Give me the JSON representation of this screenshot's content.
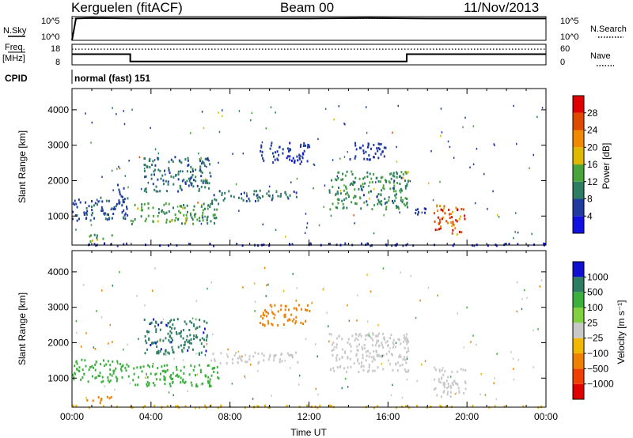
{
  "header": {
    "station": "Kerguelen (fitACF)",
    "beam": "Beam 00",
    "date": "11/Nov/2013"
  },
  "panel_labels": {
    "nsky": "N.Sky",
    "nsearch": "N.Search",
    "freq_line1": "Freq.",
    "freq_line2": "[MHz]",
    "nave": "Nave",
    "cpid": "CPID",
    "cpid_value": "normal (fast) 151"
  },
  "noise_ticks_left": [
    "10^5",
    "10^0"
  ],
  "noise_ticks_right": [
    "10^5",
    "10^0"
  ],
  "freq_ticks": [
    "18",
    "8"
  ],
  "nave_ticks": [
    "60",
    "0"
  ],
  "chart_data": [
    {
      "type": "line",
      "name_ref": "noise",
      "series": [
        {
          "name": "N.Sky",
          "x_hours": [
            0,
            0.2,
            1,
            3,
            6,
            9,
            12,
            15,
            18,
            21,
            24
          ],
          "values_log10": [
            0,
            4.6,
            4.7,
            4.6,
            4.6,
            4.6,
            4.6,
            4.7,
            4.6,
            4.6,
            4.6
          ]
        },
        {
          "name": "N.Search",
          "x_hours": [
            0,
            24
          ],
          "values_log10": [
            4.6,
            4.6
          ]
        }
      ],
      "ylim_log10": [
        0,
        5
      ]
    },
    {
      "type": "line",
      "name_ref": "frequency",
      "series": [
        {
          "name": "Freq.",
          "x_hours": [
            0,
            2.95,
            2.95,
            16.95,
            16.95,
            24
          ],
          "values": [
            13.2,
            13.2,
            9.6,
            9.6,
            13.2,
            13.2
          ]
        },
        {
          "name": "Nave",
          "x_hours": [
            0,
            24
          ],
          "values": [
            46,
            46
          ]
        }
      ],
      "ylim_left": [
        8,
        18
      ],
      "ylim_right": [
        0,
        60
      ]
    },
    {
      "type": "heatmap",
      "name_ref": "power",
      "ylabel": "Slant Range [km]",
      "ylim": [
        180,
        4600
      ],
      "y_ticks": [
        "1000",
        "2000",
        "3000",
        "4000"
      ],
      "colorbar_label": "Power [dB]",
      "colorbar_ticks": [
        "4",
        "8",
        "12",
        "16",
        "20",
        "24",
        "28"
      ],
      "colors": [
        "#1010e0",
        "#203aa0",
        "#2e7d62",
        "#4aa33c",
        "#e0b800",
        "#f08a00",
        "#e04a00",
        "#e00000"
      ],
      "cmin": 0,
      "cmax": 32,
      "echo_regions": [
        {
          "t": [
            0.0,
            2.9
          ],
          "r": [
            900,
            1550
          ],
          "v": 7
        },
        {
          "t": [
            0.7,
            2.0
          ],
          "r": [
            300,
            500
          ],
          "v": 14
        },
        {
          "t": [
            2.2,
            2.6
          ],
          "r": [
            1300,
            2100
          ],
          "v": 6
        },
        {
          "t": [
            2.95,
            7.4
          ],
          "r": [
            800,
            1400
          ],
          "v": 13
        },
        {
          "t": [
            3.6,
            7.0
          ],
          "r": [
            1700,
            2700
          ],
          "v": 9
        },
        {
          "t": [
            7.0,
            11.4
          ],
          "r": [
            1450,
            1750
          ],
          "v": 9
        },
        {
          "t": [
            9.5,
            12.0
          ],
          "r": [
            2500,
            3100
          ],
          "v": 5
        },
        {
          "t": [
            13.0,
            17.0
          ],
          "r": [
            1200,
            2300
          ],
          "v": 11
        },
        {
          "t": [
            14.0,
            16.0
          ],
          "r": [
            2600,
            3100
          ],
          "v": 6
        },
        {
          "t": [
            16.7,
            17.0
          ],
          "r": [
            2000,
            2300
          ],
          "v": 16
        },
        {
          "t": [
            17.3,
            18.0
          ],
          "r": [
            1050,
            1250
          ],
          "v": 5
        },
        {
          "t": [
            18.3,
            19.9
          ],
          "r": [
            500,
            1350
          ],
          "v": 24
        },
        {
          "t": [
            0.0,
            24.0
          ],
          "r": [
            190,
            260
          ],
          "v": 4
        }
      ]
    },
    {
      "type": "heatmap",
      "name_ref": "velocity",
      "ylabel": "Slant Range [km]",
      "xlabel": "Time UT",
      "ylim": [
        180,
        4600
      ],
      "x_ticks": [
        "00:00",
        "04:00",
        "08:00",
        "12:00",
        "16:00",
        "20:00",
        "00:00"
      ],
      "y_ticks": [
        "1000",
        "2000",
        "3000",
        "4000"
      ],
      "colorbar_label": "Velocity [m s⁻¹]",
      "colorbar_ticks": [
        "1000",
        "500",
        "100",
        "25",
        "−25",
        "−100",
        "−500",
        "−1000"
      ],
      "colors": [
        "#1010d0",
        "#2e7d62",
        "#3cb03c",
        "#80d040",
        "#c8c8c8",
        "#f0b800",
        "#f08000",
        "#f04000",
        "#e00000"
      ],
      "echo_regions": [
        {
          "t": [
            0.0,
            2.9
          ],
          "r": [
            900,
            1550
          ],
          "v": 300
        },
        {
          "t": [
            0.7,
            2.0
          ],
          "r": [
            300,
            500
          ],
          "v": -300
        },
        {
          "t": [
            2.95,
            7.4
          ],
          "r": [
            800,
            1400
          ],
          "v": 150
        },
        {
          "t": [
            3.6,
            7.0
          ],
          "r": [
            1700,
            2700
          ],
          "v": 800
        },
        {
          "t": [
            7.0,
            11.4
          ],
          "r": [
            1450,
            1750
          ],
          "v": 0
        },
        {
          "t": [
            9.5,
            12.0
          ],
          "r": [
            2500,
            3100
          ],
          "v": -200
        },
        {
          "t": [
            13.0,
            17.0
          ],
          "r": [
            1200,
            2300
          ],
          "v": 0
        },
        {
          "t": [
            16.7,
            17.0
          ],
          "r": [
            2000,
            2300
          ],
          "v": 0
        },
        {
          "t": [
            18.3,
            19.9
          ],
          "r": [
            500,
            1350
          ],
          "v": 0
        },
        {
          "t": [
            0.0,
            24.0
          ],
          "r": [
            190,
            260
          ],
          "v": -60
        }
      ]
    }
  ]
}
